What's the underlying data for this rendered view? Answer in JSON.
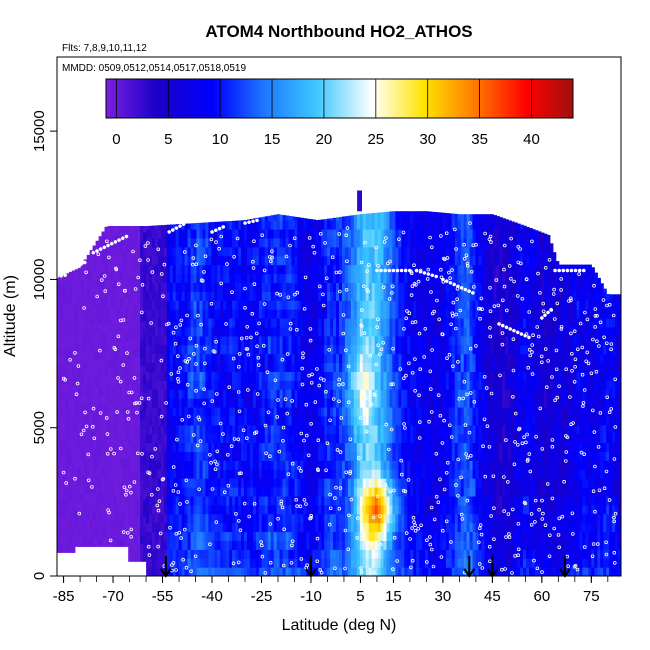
{
  "chart_data": {
    "type": "heatmap",
    "title": "ATOM4 Northbound HO2_ATHOS",
    "subtitle_flights": "Flts: 7,8,9,10,11,12",
    "subtitle_dates": "MMDD: 0509,0512,0514,0517,0518,0519",
    "xlabel": "Latitude (deg N)",
    "ylabel": "Altitude (m)",
    "xlim": [
      -87,
      84
    ],
    "ylim": [
      0,
      17500
    ],
    "x_ticks": [
      -85,
      -70,
      -55,
      -40,
      -25,
      -10,
      5,
      15,
      30,
      45,
      60,
      75
    ],
    "x_tick_labels": [
      "-85",
      "-70",
      "-55",
      "-40",
      "-25",
      "-10",
      "5",
      "15",
      "30",
      "45",
      "60",
      "75"
    ],
    "y_ticks": [
      0,
      5000,
      10000,
      15000
    ],
    "y_tick_labels": [
      "0",
      "5000",
      "10000",
      "15000"
    ],
    "colorbar": {
      "min": -1,
      "max": 44,
      "ticks": [
        0,
        5,
        10,
        15,
        20,
        25,
        30,
        35,
        40
      ],
      "tick_labels": [
        "0",
        "5",
        "10",
        "15",
        "20",
        "25",
        "30",
        "35",
        "40"
      ],
      "colors": [
        "#7a1fe0",
        "#1a00c8",
        "#0000ff",
        "#1e78ff",
        "#3cc8ff",
        "#ffffff",
        "#ffe400",
        "#ff7a00",
        "#ff0000",
        "#a01010"
      ]
    },
    "arrow_latitudes": [
      -54,
      -10,
      38,
      45,
      67
    ],
    "tops_m": [
      [
        -86,
        10100
      ],
      [
        -80,
        10400
      ],
      [
        -72,
        11800
      ],
      [
        -60,
        11800
      ],
      [
        -45,
        11900
      ],
      [
        -30,
        12000
      ],
      [
        -20,
        12200
      ],
      [
        -8,
        12000
      ],
      [
        5,
        12200
      ],
      [
        15,
        12300
      ],
      [
        25,
        12300
      ],
      [
        35,
        12200
      ],
      [
        45,
        12200
      ],
      [
        55,
        11800
      ],
      [
        62,
        11500
      ],
      [
        65,
        10500
      ],
      [
        75,
        10500
      ],
      [
        80,
        9500
      ],
      [
        83,
        9500
      ]
    ],
    "grid": false
  }
}
